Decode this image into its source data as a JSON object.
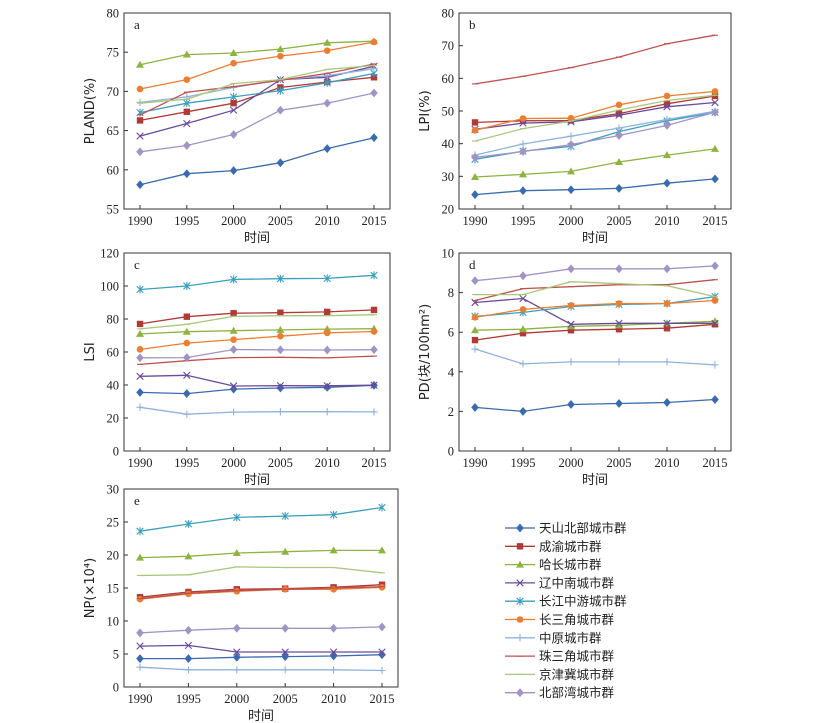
{
  "figure": {
    "legend": [
      {
        "name": "天山北部城市群",
        "color": "#3A6BB0",
        "marker": "diamond"
      },
      {
        "name": "成渝城市群",
        "color": "#B23A36",
        "marker": "square"
      },
      {
        "name": "哈长城市群",
        "color": "#8DB440",
        "marker": "triangle"
      },
      {
        "name": "辽中南城市群",
        "color": "#6A4A9C",
        "marker": "x"
      },
      {
        "name": "长江中游城市群",
        "color": "#3A9FBF",
        "marker": "star"
      },
      {
        "name": "长三角城市群",
        "color": "#ED7D31",
        "marker": "circle"
      },
      {
        "name": "中原城市群",
        "color": "#8FB2DB",
        "marker": "plus"
      },
      {
        "name": "珠三角城市群",
        "color": "#C0504D",
        "marker": "dash"
      },
      {
        "name": "京津冀城市群",
        "color": "#A9C77A",
        "marker": "dash"
      },
      {
        "name": "北部湾城市群",
        "color": "#A293C6",
        "marker": "diamond"
      }
    ]
  },
  "chart_data": [
    {
      "type": "line",
      "panel_label": "a",
      "ylabel": "PLAND(%)",
      "xlabel": "时间",
      "x": [
        1990,
        1995,
        2000,
        2005,
        2010,
        2015
      ],
      "ylim": [
        55,
        80
      ],
      "yticks": [
        55,
        60,
        65,
        70,
        75,
        80
      ],
      "series": [
        {
          "name": "天山北部城市群",
          "values": [
            58.1,
            59.5,
            59.9,
            60.9,
            62.7,
            64.1
          ]
        },
        {
          "name": "成渝城市群",
          "values": [
            66.3,
            67.4,
            68.5,
            70.5,
            71.2,
            71.8
          ]
        },
        {
          "name": "哈长城市群",
          "values": [
            73.4,
            74.7,
            74.9,
            75.4,
            76.2,
            76.4
          ]
        },
        {
          "name": "辽中南城市群",
          "values": [
            64.3,
            65.9,
            67.6,
            71.5,
            71.8,
            73.2
          ]
        },
        {
          "name": "长江中游城市群",
          "values": [
            67.3,
            68.5,
            69.3,
            70.1,
            71.1,
            72.3
          ]
        },
        {
          "name": "长三角城市群",
          "values": [
            70.3,
            71.5,
            73.6,
            74.5,
            75.2,
            76.3
          ]
        },
        {
          "name": "中原城市群",
          "values": [
            68.6,
            69.3,
            70.5,
            71.5,
            72.0,
            72.9
          ]
        },
        {
          "name": "珠三角城市群",
          "values": [
            67.0,
            69.9,
            70.6,
            71.4,
            72.3,
            73.5
          ]
        },
        {
          "name": "京津冀城市群",
          "values": [
            68.5,
            69.0,
            71.0,
            71.5,
            72.8,
            73.3
          ]
        },
        {
          "name": "北部湾城市群",
          "values": [
            62.3,
            63.1,
            64.5,
            67.6,
            68.5,
            69.8
          ]
        }
      ]
    },
    {
      "type": "line",
      "panel_label": "b",
      "ylabel": "LPI(%)",
      "xlabel": "时间",
      "x": [
        1990,
        1995,
        2000,
        2005,
        2010,
        2015
      ],
      "ylim": [
        20,
        80
      ],
      "yticks": [
        20,
        30,
        40,
        50,
        60,
        70,
        80
      ],
      "series": [
        {
          "name": "天山北部城市群",
          "values": [
            24.4,
            25.6,
            25.9,
            26.3,
            27.9,
            29.2
          ]
        },
        {
          "name": "成渝城市群",
          "values": [
            46.5,
            47.0,
            47.1,
            49.2,
            52.2,
            54.6
          ]
        },
        {
          "name": "哈长城市群",
          "values": [
            29.8,
            30.6,
            31.5,
            34.4,
            36.5,
            38.4
          ]
        },
        {
          "name": "辽中南城市群",
          "values": [
            44.4,
            46.3,
            46.7,
            48.7,
            51.3,
            52.6
          ]
        },
        {
          "name": "长江中游城市群",
          "values": [
            35.2,
            37.7,
            39.2,
            43.7,
            47.0,
            49.6
          ]
        },
        {
          "name": "长三角城市群",
          "values": [
            44.1,
            47.7,
            47.8,
            51.9,
            54.6,
            56.0
          ]
        },
        {
          "name": "中原城市群",
          "values": [
            36.5,
            39.9,
            42.3,
            44.8,
            47.4,
            49.9
          ]
        },
        {
          "name": "珠三角城市群",
          "values": [
            58.3,
            60.6,
            63.3,
            66.5,
            70.6,
            73.2
          ]
        },
        {
          "name": "京津冀城市群",
          "values": [
            40.8,
            44.6,
            46.9,
            50.3,
            53.2,
            54.8
          ]
        },
        {
          "name": "北部湾城市群",
          "values": [
            35.8,
            37.6,
            39.7,
            42.5,
            45.6,
            49.6
          ]
        }
      ]
    },
    {
      "type": "line",
      "panel_label": "c",
      "ylabel": "LSI",
      "xlabel": "时间",
      "x": [
        1990,
        1995,
        2000,
        2005,
        2010,
        2015
      ],
      "ylim": [
        0,
        120
      ],
      "yticks": [
        0,
        20,
        40,
        60,
        80,
        100,
        120
      ],
      "series": [
        {
          "name": "天山北部城市群",
          "values": [
            35.5,
            34.8,
            37.5,
            38.2,
            38.6,
            39.8
          ]
        },
        {
          "name": "成渝城市群",
          "values": [
            77.0,
            81.4,
            83.5,
            83.8,
            84.3,
            85.5
          ]
        },
        {
          "name": "哈长城市群",
          "values": [
            71.0,
            72.3,
            72.9,
            73.4,
            73.9,
            74.1
          ]
        },
        {
          "name": "辽中南城市群",
          "values": [
            45.3,
            45.9,
            39.4,
            39.6,
            39.5,
            39.9
          ]
        },
        {
          "name": "长江中游城市群",
          "values": [
            97.9,
            100.0,
            104.0,
            104.4,
            104.6,
            106.5
          ]
        },
        {
          "name": "长三角城市群",
          "values": [
            61.6,
            65.4,
            67.5,
            69.6,
            71.6,
            72.4
          ]
        },
        {
          "name": "中原城市群",
          "values": [
            26.5,
            22.3,
            23.6,
            23.8,
            23.8,
            23.7
          ]
        },
        {
          "name": "珠三角城市群",
          "values": [
            52.5,
            54.7,
            56.6,
            56.8,
            56.4,
            57.5
          ]
        },
        {
          "name": "京津冀城市群",
          "values": [
            74.0,
            76.8,
            81.6,
            82.0,
            82.0,
            82.6
          ]
        },
        {
          "name": "北部湾城市群",
          "values": [
            56.5,
            56.6,
            61.5,
            61.3,
            61.2,
            61.4
          ]
        }
      ]
    },
    {
      "type": "line",
      "panel_label": "d",
      "ylabel": "PD(块/100hm²)",
      "xlabel": "时间",
      "x": [
        1990,
        1995,
        2000,
        2005,
        2010,
        2015
      ],
      "ylim": [
        0,
        10
      ],
      "yticks": [
        0,
        2,
        4,
        6,
        8,
        10
      ],
      "series": [
        {
          "name": "天山北部城市群",
          "values": [
            2.2,
            2.0,
            2.35,
            2.4,
            2.45,
            2.6
          ]
        },
        {
          "name": "成渝城市群",
          "values": [
            5.6,
            5.95,
            6.1,
            6.15,
            6.2,
            6.4
          ]
        },
        {
          "name": "哈长城市群",
          "values": [
            6.1,
            6.15,
            6.3,
            6.35,
            6.45,
            6.55
          ]
        },
        {
          "name": "辽中南城市群",
          "values": [
            7.5,
            7.7,
            6.4,
            6.45,
            6.45,
            6.45
          ]
        },
        {
          "name": "长江中游城市群",
          "values": [
            6.8,
            7.0,
            7.3,
            7.4,
            7.45,
            7.8
          ]
        },
        {
          "name": "长三角城市群",
          "values": [
            6.75,
            7.15,
            7.35,
            7.45,
            7.45,
            7.6
          ]
        },
        {
          "name": "中原城市群",
          "values": [
            5.15,
            4.4,
            4.5,
            4.5,
            4.5,
            4.35
          ]
        },
        {
          "name": "珠三角城市群",
          "values": [
            7.6,
            8.2,
            8.3,
            8.4,
            8.4,
            8.65
          ]
        },
        {
          "name": "京津冀城市群",
          "values": [
            7.9,
            7.9,
            8.55,
            8.45,
            8.35,
            7.8
          ]
        },
        {
          "name": "北部湾城市群",
          "values": [
            8.6,
            8.85,
            9.2,
            9.2,
            9.2,
            9.35
          ]
        }
      ]
    },
    {
      "type": "line",
      "panel_label": "e",
      "ylabel": "NP(×10⁴)",
      "xlabel": "时间",
      "x": [
        1990,
        1995,
        2000,
        2005,
        2010,
        2015
      ],
      "ylim": [
        0,
        30
      ],
      "yticks": [
        0,
        5,
        10,
        15,
        20,
        25,
        30
      ],
      "series": [
        {
          "name": "天山北部城市群",
          "values": [
            4.3,
            4.3,
            4.5,
            4.6,
            4.7,
            4.9
          ]
        },
        {
          "name": "成渝城市群",
          "values": [
            13.6,
            14.4,
            14.8,
            14.9,
            15.1,
            15.5
          ]
        },
        {
          "name": "哈长城市群",
          "values": [
            19.6,
            19.8,
            20.3,
            20.5,
            20.7,
            20.7
          ]
        },
        {
          "name": "辽中南城市群",
          "values": [
            6.2,
            6.3,
            5.3,
            5.3,
            5.3,
            5.3
          ]
        },
        {
          "name": "长江中游城市群",
          "values": [
            23.6,
            24.7,
            25.7,
            25.9,
            26.1,
            27.2
          ]
        },
        {
          "name": "长三角城市群",
          "values": [
            13.3,
            14.1,
            14.5,
            14.8,
            14.8,
            15.1
          ]
        },
        {
          "name": "中原城市群",
          "values": [
            3.0,
            2.6,
            2.6,
            2.6,
            2.6,
            2.5
          ]
        },
        {
          "name": "珠三角城市群",
          "values": [
            13.4,
            14.2,
            14.6,
            14.8,
            15.0,
            15.2
          ]
        },
        {
          "name": "京津冀城市群",
          "values": [
            16.9,
            17.0,
            18.2,
            18.1,
            18.1,
            17.3
          ]
        },
        {
          "name": "北部湾城市群",
          "values": [
            8.2,
            8.6,
            8.9,
            8.9,
            8.9,
            9.1
          ]
        }
      ]
    }
  ]
}
